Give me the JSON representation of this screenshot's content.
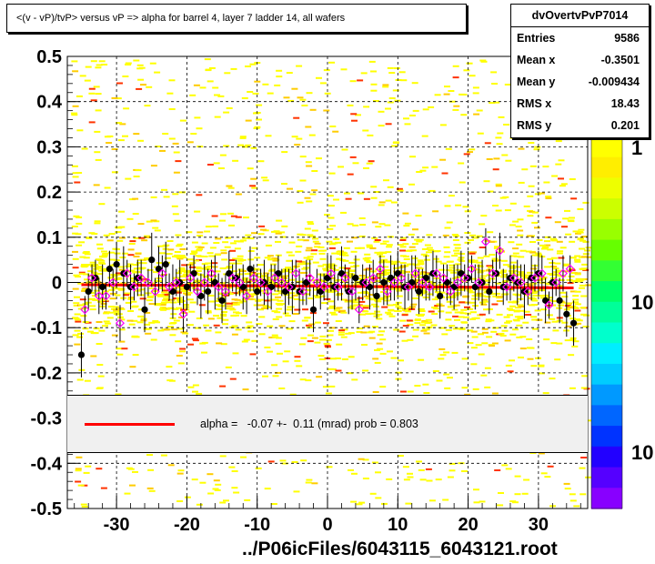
{
  "title": "<(v - vP)/tvP> versus   vP => alpha for barrel 4, layer 7 ladder 14, all wafers",
  "stats": {
    "name": "dvOvertvPvP7014",
    "rows": [
      {
        "key": "Entries",
        "value": "9586"
      },
      {
        "key": "Mean x",
        "value": "-0.3501"
      },
      {
        "key": "Mean y",
        "value": "-0.009434"
      },
      {
        "key": "RMS x",
        "value": "18.43"
      },
      {
        "key": "RMS y",
        "value": "0.201"
      }
    ]
  },
  "fit": {
    "text": "alpha =   -0.07 +-  0.11 (mrad) prob = 0.803",
    "line_color": "#ff0000"
  },
  "x_axis_title": "../P06icFiles/6043115_6043121.root",
  "palette_labels": [
    "1",
    "10",
    "10"
  ],
  "chart_data": {
    "type": "scatter",
    "title": "<(v - vP)/tvP> versus   vP => alpha for barrel 4, layer 7 ladder 14, all wafers",
    "xlabel": "../P06icFiles/6043115_6043121.root",
    "ylabel": "",
    "xlim": [
      -37,
      37
    ],
    "ylim": [
      -0.5,
      0.5
    ],
    "x_ticks": [
      -30,
      -20,
      -10,
      0,
      10,
      20,
      30
    ],
    "x_tick_labels": [
      "-30",
      "-20",
      "-10",
      "0",
      "10",
      "20",
      "30"
    ],
    "y_ticks": [
      -0.5,
      -0.4,
      -0.3,
      -0.2,
      -0.1,
      0,
      0.1,
      0.2,
      0.3,
      0.4,
      0.5
    ],
    "y_tick_labels": [
      "-0.5",
      "-0.4",
      "-0.3",
      "-0.2",
      "-0.1",
      "0",
      "0.1",
      "0.2",
      "0.3",
      "0.4",
      "0.5"
    ],
    "grid": true,
    "fit_line": {
      "x": [
        -35,
        35
      ],
      "y": [
        -0.005,
        -0.012
      ],
      "color": "#ff0000"
    },
    "series": [
      {
        "marker": "filled-circle",
        "color": "#000000",
        "x": [
          -35,
          -34,
          -33,
          -32,
          -31,
          -30,
          -29,
          -28,
          -27,
          -26,
          -25,
          -24,
          -23,
          -22,
          -21,
          -20,
          -19,
          -18,
          -17,
          -16,
          -15,
          -14,
          -13,
          -12,
          -11,
          -10,
          -9,
          -8,
          -7,
          -6,
          -5,
          -4,
          -3,
          -2,
          -1,
          0,
          1,
          2,
          3,
          4,
          5,
          6,
          7,
          8,
          9,
          10,
          11,
          12,
          13,
          14,
          15,
          16,
          17,
          18,
          19,
          20,
          21,
          22,
          23,
          24,
          25,
          26,
          27,
          28,
          29,
          30,
          31,
          32,
          33,
          34,
          35
        ],
        "y": [
          -0.16,
          -0.02,
          0.01,
          -0.01,
          0.03,
          0.04,
          0.02,
          -0.01,
          0.01,
          -0.06,
          0.05,
          0.03,
          0.04,
          -0.02,
          0.0,
          -0.01,
          0.02,
          -0.03,
          -0.02,
          0.0,
          -0.04,
          0.02,
          0.01,
          -0.01,
          0.03,
          -0.02,
          0.0,
          -0.01,
          0.02,
          -0.02,
          -0.01,
          -0.02,
          0.0,
          -0.06,
          -0.02,
          0.01,
          -0.01,
          0.02,
          -0.02,
          0.01,
          0.0,
          -0.01,
          -0.03,
          0.0,
          0.01,
          0.02,
          -0.01,
          0.0,
          -0.02,
          0.01,
          0.02,
          -0.03,
          0.0,
          -0.01,
          0.02,
          0.01,
          -0.01,
          0.0,
          -0.02,
          0.02,
          -0.01,
          0.01,
          0.0,
          -0.02,
          0.01,
          0.02,
          -0.04,
          0.0,
          -0.04,
          -0.07,
          -0.09
        ],
        "err": [
          0.05,
          0.04,
          0.04,
          0.05,
          0.04,
          0.05,
          0.06,
          0.05,
          0.04,
          0.05,
          0.06,
          0.05,
          0.05,
          0.06,
          0.05,
          0.05,
          0.04,
          0.05,
          0.05,
          0.06,
          0.05,
          0.05,
          0.04,
          0.05,
          0.05,
          0.04,
          0.05,
          0.05,
          0.04,
          0.05,
          0.06,
          0.05,
          0.05,
          0.05,
          0.04,
          0.05,
          0.05,
          0.06,
          0.05,
          0.05,
          0.04,
          0.05,
          0.05,
          0.05,
          0.05,
          0.05,
          0.05,
          0.06,
          0.05,
          0.05,
          0.05,
          0.05,
          0.04,
          0.05,
          0.05,
          0.06,
          0.05,
          0.05,
          0.05,
          0.05,
          0.04,
          0.05,
          0.05,
          0.06,
          0.05,
          0.05,
          0.05,
          0.05,
          0.05,
          0.05,
          0.05
        ]
      },
      {
        "marker": "open-diamond",
        "color": "#ff00ff",
        "x": [
          -34.5,
          -33.5,
          -32.5,
          -31.5,
          -30.5,
          -29.5,
          -28.5,
          -27.5,
          -26.5,
          -25.5,
          -24.5,
          -23.5,
          -22.5,
          -21.5,
          -20.5,
          -19.5,
          -18.5,
          -17.5,
          -16.5,
          -15.5,
          -14.5,
          -13.5,
          -12.5,
          -11.5,
          -10.5,
          -9.5,
          -8.5,
          -7.5,
          -6.5,
          -5.5,
          -4.5,
          -3.5,
          -2.5,
          -1.5,
          -0.5,
          0.5,
          1.5,
          2.5,
          3.5,
          4.5,
          5.5,
          6.5,
          7.5,
          8.5,
          9.5,
          10.5,
          11.5,
          12.5,
          13.5,
          14.5,
          15.5,
          16.5,
          17.5,
          18.5,
          19.5,
          20.5,
          21.5,
          22.5,
          23.5,
          24.5,
          25.5,
          26.5,
          27.5,
          28.5,
          29.5,
          30.5,
          31.5,
          32.5,
          33.5,
          34.5
        ],
        "y": [
          -0.06,
          0.01,
          -0.03,
          -0.03,
          0.0,
          -0.09,
          0.02,
          -0.01,
          0.01,
          0.0,
          -0.02,
          0.02,
          -0.01,
          0.0,
          -0.07,
          0.01,
          -0.02,
          0.0,
          0.02,
          -0.01,
          -0.02,
          0.01,
          0.0,
          -0.03,
          0.01,
          0.0,
          -0.02,
          0.01,
          0.0,
          -0.01,
          0.02,
          -0.02,
          0.01,
          0.0,
          -0.01,
          0.02,
          -0.01,
          0.01,
          -0.02,
          -0.06,
          0.0,
          0.01,
          0.03,
          -0.02,
          0.0,
          0.01,
          -0.01,
          0.02,
          0.0,
          -0.01,
          0.02,
          0.01,
          -0.02,
          0.0,
          0.01,
          0.03,
          0.0,
          0.09,
          0.02,
          0.07,
          -0.01,
          0.01,
          0.0,
          -0.02,
          0.01,
          0.02,
          -0.05,
          0.0,
          0.02,
          0.03
        ],
        "err": [
          0.03,
          0.03,
          0.04,
          0.03,
          0.03,
          0.04,
          0.03,
          0.03,
          0.04,
          0.03,
          0.03,
          0.04,
          0.03,
          0.03,
          0.04,
          0.03,
          0.03,
          0.04,
          0.03,
          0.03,
          0.04,
          0.03,
          0.03,
          0.04,
          0.03,
          0.03,
          0.04,
          0.03,
          0.03,
          0.04,
          0.03,
          0.03,
          0.04,
          0.03,
          0.03,
          0.04,
          0.03,
          0.03,
          0.04,
          0.03,
          0.03,
          0.04,
          0.03,
          0.03,
          0.04,
          0.03,
          0.03,
          0.04,
          0.03,
          0.03,
          0.04,
          0.03,
          0.03,
          0.04,
          0.03,
          0.03,
          0.04,
          0.03,
          0.03,
          0.04,
          0.03,
          0.03,
          0.04,
          0.03,
          0.03,
          0.04,
          0.03,
          0.03,
          0.04,
          0.03
        ]
      }
    ]
  }
}
